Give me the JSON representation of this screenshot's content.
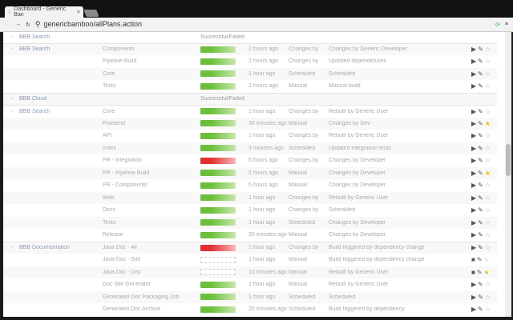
{
  "browser": {
    "tab_title": "Dashboard - Generic Ban",
    "url": "genericbamboo/allPlans.action"
  },
  "rows": [
    {
      "type": "group",
      "project": "BBB Search",
      "status_text": "Successful/Failed"
    },
    {
      "type": "plan",
      "project": "BBB Search",
      "plan": "Components",
      "status": "success",
      "time": "2 hours ago",
      "reason": "Changes by",
      "changes": "Changes by Generic Developer",
      "stop": false,
      "fav": false
    },
    {
      "type": "plan",
      "project": "",
      "plan": "Pipeline Build",
      "status": "success",
      "time": "2 hours ago",
      "reason": "Changes by",
      "changes": "Updated dependencies",
      "stop": false,
      "fav": false
    },
    {
      "type": "plan",
      "project": "",
      "plan": "Core",
      "status": "success",
      "time": "1 hour ago",
      "reason": "Scheduled",
      "changes": "Scheduled",
      "stop": false,
      "fav": false
    },
    {
      "type": "plan",
      "project": "",
      "plan": "Tests",
      "status": "success",
      "time": "2 hours ago",
      "reason": "Manual",
      "changes": "Manual build",
      "stop": false,
      "fav": false
    },
    {
      "type": "group",
      "project": "BBB Cloud",
      "status_text": "Successful/Failed"
    },
    {
      "type": "plan",
      "project": "BBB Search",
      "plan": "Core",
      "status": "success",
      "time": "1 hour ago",
      "reason": "Changes by",
      "changes": "Rebuilt by Generic User",
      "stop": false,
      "fav": false
    },
    {
      "type": "plan",
      "project": "",
      "plan": "Frontend",
      "status": "success",
      "time": "30 minutes ago",
      "reason": "Manual",
      "changes": "Changes by Dev",
      "stop": false,
      "fav": true
    },
    {
      "type": "plan",
      "project": "",
      "plan": "API",
      "status": "success",
      "time": "1 hour ago",
      "reason": "Changes by",
      "changes": "Rebuilt by Generic User",
      "stop": false,
      "fav": false
    },
    {
      "type": "plan",
      "project": "",
      "plan": "Index",
      "status": "success",
      "time": "3 minutes ago",
      "reason": "Scheduled",
      "changes": "Updated integration tests",
      "stop": false,
      "fav": false
    },
    {
      "type": "plan",
      "project": "",
      "plan": "PR - Integration",
      "status": "failed",
      "time": "5 hours ago",
      "reason": "Changes by",
      "changes": "Changes by Developer",
      "stop": false,
      "fav": false
    },
    {
      "type": "plan",
      "project": "",
      "plan": "PR - Pipeline Build",
      "status": "success",
      "time": "5 hours ago",
      "reason": "Manual",
      "changes": "Changes by Developer",
      "stop": false,
      "fav": true
    },
    {
      "type": "plan",
      "project": "",
      "plan": "PR - Components",
      "status": "success",
      "time": "5 hours ago",
      "reason": "Manual",
      "changes": "Changes by Developer",
      "stop": false,
      "fav": false
    },
    {
      "type": "plan",
      "project": "",
      "plan": "Web",
      "status": "success",
      "time": "1 hour ago",
      "reason": "Changes by",
      "changes": "Rebuilt by Generic User",
      "stop": false,
      "fav": false
    },
    {
      "type": "plan",
      "project": "",
      "plan": "Docs",
      "status": "success",
      "time": "1 hour ago",
      "reason": "Changes by",
      "changes": "Scheduled",
      "stop": false,
      "fav": false
    },
    {
      "type": "plan",
      "project": "",
      "plan": "Tests",
      "status": "success",
      "time": "1 hour ago",
      "reason": "Scheduled",
      "changes": "Changes by Developer",
      "stop": false,
      "fav": false
    },
    {
      "type": "plan",
      "project": "",
      "plan": "Release",
      "status": "success",
      "time": "20 minutes ago",
      "reason": "Manual",
      "changes": "Changes by Developer",
      "stop": false,
      "fav": false
    },
    {
      "type": "plan",
      "project": "BBB Documentation",
      "plan": "Java Doc - All",
      "status": "failed",
      "time": "1 hour ago",
      "reason": "Changes by",
      "changes": "Build triggered by dependency change",
      "stop": false,
      "fav": false
    },
    {
      "type": "plan",
      "project": "",
      "plan": "Java Doc - Site",
      "status": "unknown",
      "time": "1 hour ago",
      "reason": "Manual",
      "changes": "Build triggered by dependency change",
      "stop": true,
      "fav": false
    },
    {
      "type": "plan",
      "project": "",
      "plan": "Java Doc - Dist",
      "status": "unknown",
      "time": "10 minutes ago",
      "reason": "Manual",
      "changes": "Rebuilt by Generic User",
      "stop": true,
      "fav": true
    },
    {
      "type": "plan",
      "project": "",
      "plan": "Doc Site Generator",
      "status": "success",
      "time": "1 hour ago",
      "reason": "Manual",
      "changes": "Rebuilt by Generic User",
      "stop": false,
      "fav": false
    },
    {
      "type": "plan",
      "project": "",
      "plan": "Generated Doc Packaging Job",
      "status": "success",
      "time": "1 hour ago",
      "reason": "Scheduled",
      "changes": "Scheduled",
      "stop": false,
      "fav": false
    },
    {
      "type": "plan",
      "project": "",
      "plan": "Generated Doc Archive",
      "status": "success",
      "time": "20 minutes ago",
      "reason": "Scheduled",
      "changes": "Build triggered by dependency",
      "stop": false,
      "fav": false
    }
  ]
}
